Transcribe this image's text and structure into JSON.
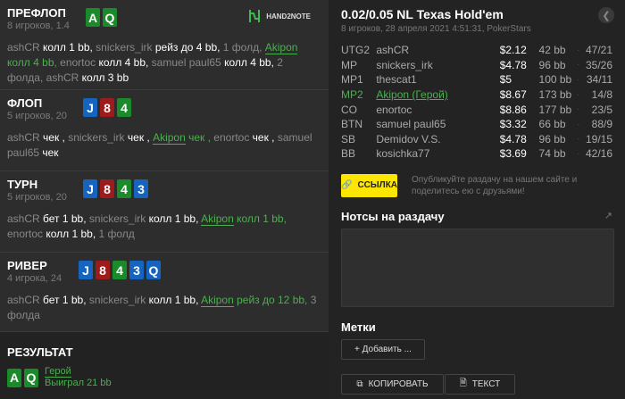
{
  "logo": "HAND2NOTE",
  "colors": {
    "spade": "#1565c0",
    "heart": "#9e1b1b",
    "club": "#1b8a2a",
    "diamond": "#1565c0",
    "hero": "#4caf50",
    "link_button": "#ffe600"
  },
  "streets": [
    {
      "title": "ПРЕФЛОП",
      "sub": "8 игроков, 1.4",
      "cards": [
        {
          "r": "A",
          "c": "#1b8a2a"
        },
        {
          "r": "Q",
          "c": "#1b8a2a"
        }
      ],
      "actions": [
        [
          "n",
          "ashCR "
        ],
        [
          "a",
          "колл 1 bb, "
        ],
        [
          "n",
          "snickers_irk "
        ],
        [
          "a",
          "рейз до 4 bb, "
        ],
        [
          "n",
          "1 фолд, "
        ],
        [
          "hn",
          "Akipon"
        ],
        [
          "h",
          " колл 4 bb, "
        ],
        [
          "n",
          "enortoc "
        ],
        [
          "a",
          "колл 4 bb, "
        ],
        [
          "n",
          "samuel paul65 "
        ],
        [
          "a",
          "колл 4 bb, "
        ],
        [
          "n",
          "2 фолда, "
        ],
        [
          "n",
          "ashCR "
        ],
        [
          "a",
          "колл 3 bb"
        ]
      ]
    },
    {
      "title": "ФЛОП",
      "sub": "5 игроков, 20",
      "cards": [
        {
          "r": "J",
          "c": "#1565c0"
        },
        {
          "r": "8",
          "c": "#9e1b1b"
        },
        {
          "r": "4",
          "c": "#1b8a2a"
        }
      ],
      "actions": [
        [
          "n",
          "ashCR "
        ],
        [
          "a",
          "чек , "
        ],
        [
          "n",
          "snickers_irk "
        ],
        [
          "a",
          "чек , "
        ],
        [
          "hn",
          "Akipon"
        ],
        [
          "h",
          " чек , "
        ],
        [
          "n",
          "enortoc "
        ],
        [
          "a",
          "чек , "
        ],
        [
          "n",
          "samuel paul65 "
        ],
        [
          "a",
          "чек"
        ]
      ]
    },
    {
      "title": "ТУРН",
      "sub": "5 игроков, 20",
      "cards": [
        {
          "r": "J",
          "c": "#1565c0"
        },
        {
          "r": "8",
          "c": "#9e1b1b"
        },
        {
          "r": "4",
          "c": "#1b8a2a"
        },
        {
          "r": "3",
          "c": "#1565c0"
        }
      ],
      "actions": [
        [
          "n",
          "ashCR "
        ],
        [
          "a",
          "бет 1 bb, "
        ],
        [
          "n",
          "snickers_irk "
        ],
        [
          "a",
          "колл 1 bb, "
        ],
        [
          "hn",
          "Akipon"
        ],
        [
          "h",
          " колл 1 bb, "
        ],
        [
          "n",
          "enortoc "
        ],
        [
          "a",
          "колл 1 bb, "
        ],
        [
          "n",
          "1 фолд"
        ]
      ]
    },
    {
      "title": "РИВЕР",
      "sub": "4 игрока, 24",
      "cards": [
        {
          "r": "J",
          "c": "#1565c0"
        },
        {
          "r": "8",
          "c": "#9e1b1b"
        },
        {
          "r": "4",
          "c": "#1b8a2a"
        },
        {
          "r": "3",
          "c": "#1565c0"
        },
        {
          "r": "Q",
          "c": "#1565c0"
        }
      ],
      "actions": [
        [
          "n",
          "ashCR "
        ],
        [
          "a",
          "бет 1 bb, "
        ],
        [
          "n",
          "snickers_irk "
        ],
        [
          "a",
          "колл 1 bb, "
        ],
        [
          "hn",
          "Akipon"
        ],
        [
          "h",
          " рейз до 12 bb, "
        ],
        [
          "n",
          "3 фолда"
        ]
      ]
    }
  ],
  "result": {
    "title": "РЕЗУЛЬТАТ",
    "cards": [
      {
        "r": "A",
        "c": "#1b8a2a"
      },
      {
        "r": "Q",
        "c": "#1b8a2a"
      }
    ],
    "who": "Герой",
    "won": "Выиграл 21 bb"
  },
  "hand": {
    "title": "0.02/0.05 NL Texas Hold'em",
    "meta": "8 игроков, 28 апреля 2021 4:51:31, PokerStars",
    "players": [
      {
        "pos": "UTG2",
        "name": "ashCR",
        "stack": "$2.12",
        "bb": "42 bb",
        "stats": "47/21"
      },
      {
        "pos": "MP",
        "name": "snickers_irk",
        "stack": "$4.78",
        "bb": "96 bb",
        "stats": "35/26"
      },
      {
        "pos": "MP1",
        "name": "thescat1",
        "stack": "$5",
        "bb": "100 bb",
        "stats": "34/11"
      },
      {
        "pos": "MP2",
        "name": "Akipon (Герой)",
        "stack": "$8.67",
        "bb": "173 bb",
        "stats": "14/8",
        "hero": true
      },
      {
        "pos": "CO",
        "name": "enortoc",
        "stack": "$8.86",
        "bb": "177 bb",
        "stats": "23/5"
      },
      {
        "pos": "BTN",
        "name": "samuel paul65",
        "stack": "$3.32",
        "bb": "66 bb",
        "stats": "88/9"
      },
      {
        "pos": "SB",
        "name": "Demidov V.S.",
        "stack": "$4.78",
        "bb": "96 bb",
        "stats": "19/15"
      },
      {
        "pos": "BB",
        "name": "kosichka77",
        "stack": "$3.69",
        "bb": "74 bb",
        "stats": "42/16"
      }
    ]
  },
  "share": {
    "button": "ССЫЛКА",
    "text": "Опубликуйте раздачу на нашем сайте и поделитесь ею с друзьями!"
  },
  "notes": {
    "title": "Нотсы на раздачу",
    "value": ""
  },
  "tags": {
    "title": "Метки",
    "add": "+ Добавить ..."
  },
  "buttons": {
    "copy": "КОПИРОВАТЬ",
    "text": "ТЕКСТ"
  }
}
